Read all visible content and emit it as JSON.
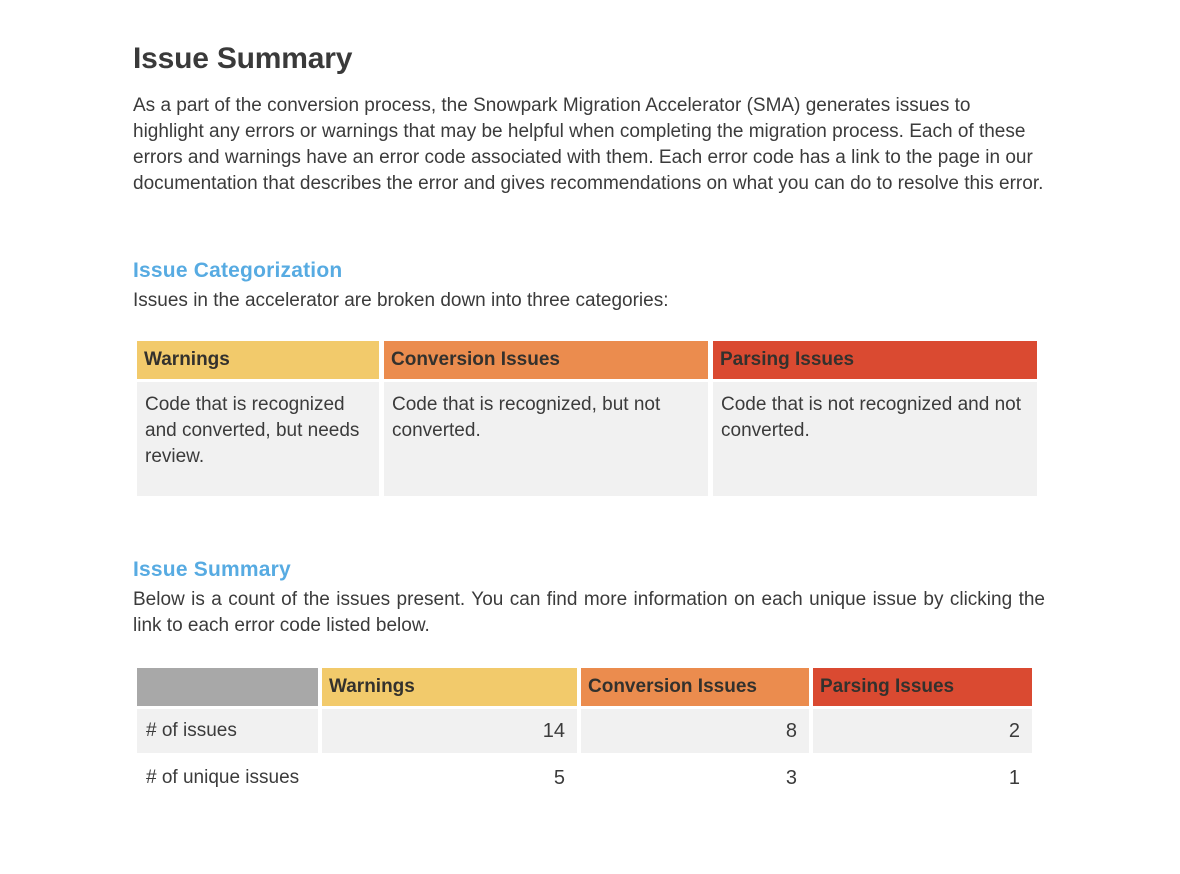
{
  "page": {
    "title": "Issue Summary",
    "intro": "As a part of the conversion process, the Snowpark Migration Accelerator (SMA) generates issues to highlight any errors or warnings that may be helpful when completing the migration process. Each of these errors and warnings have an error code associated with them. Each error code has a link to the page in our documentation that describes the error and gives recommendations on what you can do to resolve this error."
  },
  "categorization": {
    "heading": "Issue Categorization",
    "lead": "Issues in the accelerator are broken down into three categories:",
    "table": {
      "columns": [
        {
          "label": "Warnings",
          "color": "#f2ca6b",
          "description": "Code that is recognized and converted, but needs review."
        },
        {
          "label": "Conversion Issues",
          "color": "#eb8c4e",
          "description": "Code that is recognized, but not converted."
        },
        {
          "label": "Parsing Issues",
          "color": "#da4a31",
          "description": "Code that is not recognized and not converted."
        }
      ]
    }
  },
  "summary": {
    "heading": "Issue Summary",
    "lead": "Below is a count of the issues present. You can find more information on each unique issue by clicking the link to each error code listed below.",
    "table": {
      "corner": "",
      "corner_color": "#a8a8a8",
      "columns": [
        "Warnings",
        "Conversion Issues",
        "Parsing Issues"
      ],
      "rows": [
        {
          "label": "# of issues",
          "values": [
            14,
            8,
            2
          ]
        },
        {
          "label": "# of unique issues",
          "values": [
            5,
            3,
            1
          ]
        }
      ]
    }
  },
  "colors": {
    "accent_blue": "#57abe2",
    "warning_yellow": "#f2ca6b",
    "conversion_orange": "#eb8c4e",
    "parsing_red": "#da4a31",
    "gray_header": "#a8a8a8",
    "cell_gray": "#f1f1f1",
    "text_dark": "#3b3b3b",
    "background": "#ffffff"
  }
}
